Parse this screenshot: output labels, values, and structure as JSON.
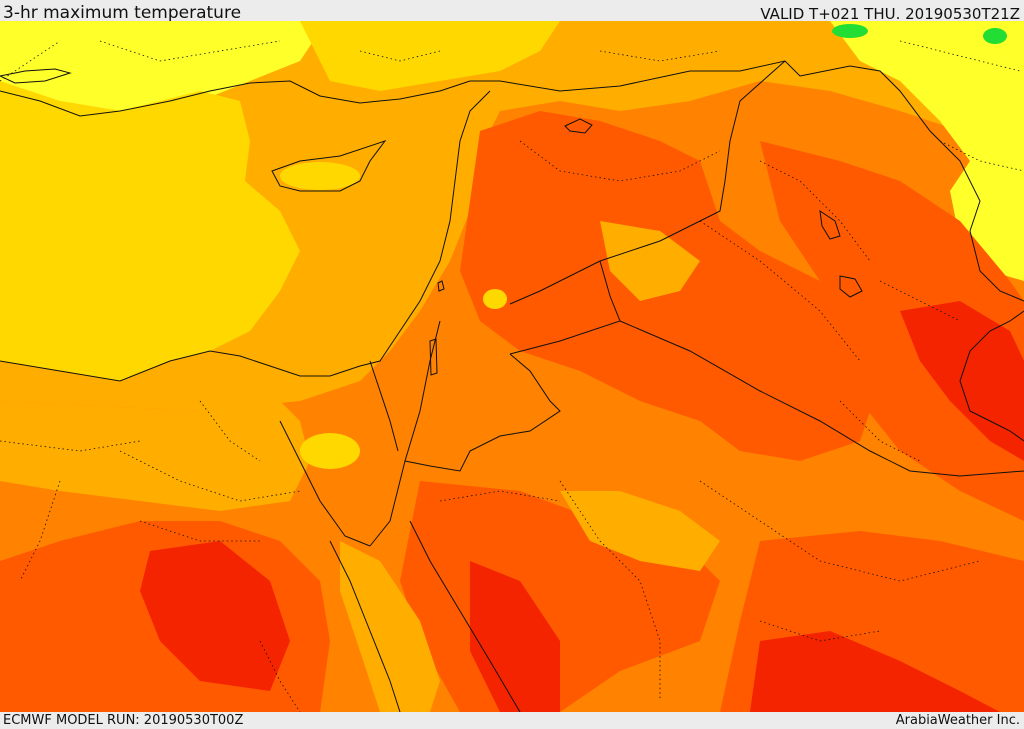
{
  "header": {
    "title": "3-hr maximum temperature",
    "valid": "VALID T+021 THU. 20190530T21Z"
  },
  "footer": {
    "model_run": "ECMWF MODEL RUN: 20190530T00Z",
    "brand": "ArabiaWeather Inc."
  },
  "map": {
    "parameter": "3-hr maximum temperature",
    "palette": {
      "warm_yellow": "#ffd800",
      "amber": "#ffae00",
      "orange": "#ff8200",
      "orange_red": "#ff5a00",
      "red": "#f52400",
      "pale_yellow": "#ffff2a",
      "green": "#22dd33"
    },
    "features": [
      "sea-area",
      "coastline",
      "country-borders",
      "province-borders",
      "temperature-fill"
    ]
  }
}
